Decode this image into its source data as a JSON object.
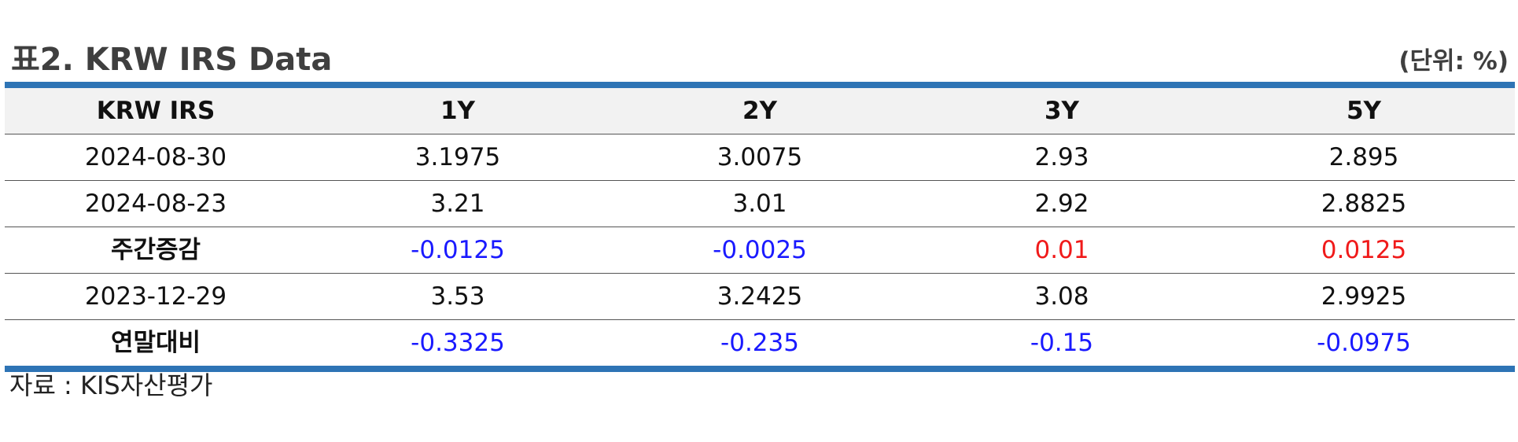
{
  "title": "표2. KRW IRS Data",
  "unit": "(단위: %)",
  "table": {
    "headers": [
      "KRW IRS",
      "1Y",
      "2Y",
      "3Y",
      "5Y"
    ],
    "rows": [
      {
        "label": "2024-08-30",
        "values": [
          "3.1975",
          "3.0075",
          "2.93",
          "2.895"
        ]
      },
      {
        "label": "2024-08-23",
        "values": [
          "3.21",
          "3.01",
          "2.92",
          "2.8825"
        ]
      },
      {
        "label": "주간증감",
        "values": [
          "-0.0125",
          "-0.0025",
          "0.01",
          "0.0125"
        ]
      },
      {
        "label": "2023-12-29",
        "values": [
          "3.53",
          "3.2425",
          "3.08",
          "2.9925"
        ]
      },
      {
        "label": "연말대비",
        "values": [
          "-0.3325",
          "-0.235",
          "-0.15",
          "-0.0975"
        ]
      }
    ]
  },
  "colors": {
    "rule": "#2e74b5",
    "header_bg": "#f2f2f2",
    "negative": "#1a1aff",
    "positive": "#f01a1a"
  },
  "source": "자료 : KIS자산평가"
}
